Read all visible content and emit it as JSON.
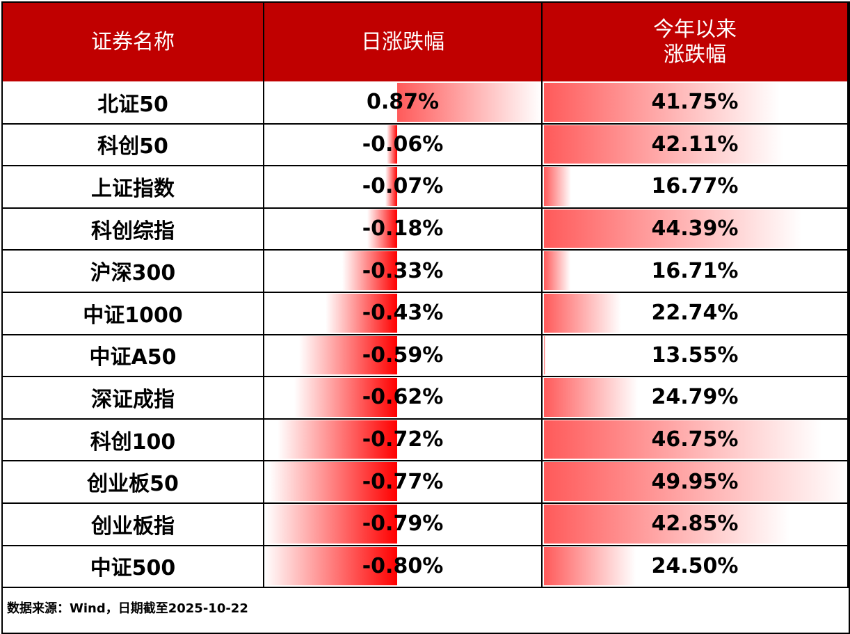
{
  "table": {
    "header": [
      "证券名称",
      "日涨跌幅",
      "今年以来\n涨跌幅"
    ],
    "rows": [
      [
        "北证50",
        "0.87%",
        "41.75%"
      ],
      [
        "科创50",
        "-0.06%",
        "42.11%"
      ],
      [
        "上证指数",
        "-0.07%",
        "16.77%"
      ],
      [
        "科创综指",
        "-0.18%",
        "44.39%"
      ],
      [
        "沪深300",
        "-0.33%",
        "16.71%"
      ],
      [
        "中证1000",
        "-0.43%",
        "22.74%"
      ],
      [
        "中证A50",
        "-0.59%",
        "13.55%"
      ],
      [
        "深证成指",
        "-0.62%",
        "24.79%"
      ],
      [
        "科创100",
        "-0.72%",
        "46.75%"
      ],
      [
        "创业板50",
        "-0.77%",
        "49.95%"
      ],
      [
        "创业板指",
        "-0.79%",
        "42.85%"
      ],
      [
        "中证500",
        "-0.80%",
        "24.50%"
      ]
    ]
  },
  "footer": "数据来源：Wind，日期截至2025-10-22"
}
